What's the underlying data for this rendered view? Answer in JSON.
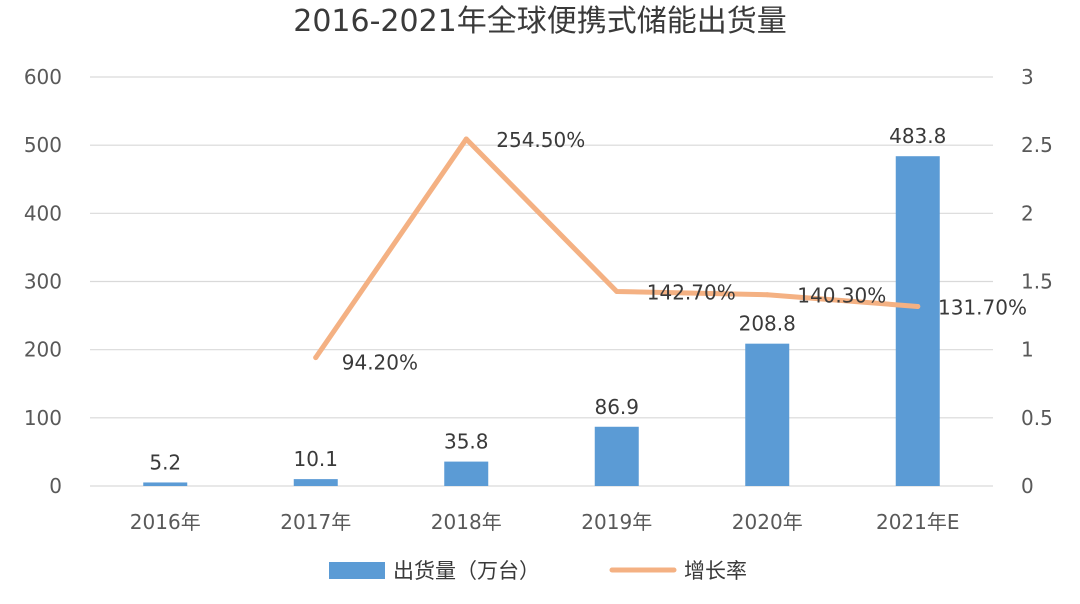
{
  "chart_data": {
    "type": "bar",
    "title": "2016-2021年全球便携式储能出货量",
    "categories": [
      "2016年",
      "2017年",
      "2018年",
      "2019年",
      "2020年",
      "2021年E"
    ],
    "series": [
      {
        "name": "出货量（万台）",
        "type": "bar",
        "axis": "left",
        "values": [
          5.2,
          10.1,
          35.8,
          86.9,
          208.8,
          483.8
        ],
        "labels": [
          "5.2",
          "10.1",
          "35.8",
          "86.9",
          "208.8",
          "483.8"
        ],
        "color": "#5b9bd5"
      },
      {
        "name": "增长率",
        "type": "line",
        "axis": "right",
        "values": [
          null,
          0.942,
          2.545,
          1.427,
          1.403,
          1.317
        ],
        "labels": [
          "",
          "94.20%",
          "254.50%",
          "142.70%",
          "140.30%",
          "131.70%"
        ],
        "color": "#f4b183"
      }
    ],
    "y_left": {
      "min": 0,
      "max": 600,
      "ticks": [
        "0",
        "100",
        "200",
        "300",
        "400",
        "500",
        "600"
      ]
    },
    "y_right": {
      "min": 0,
      "max": 3,
      "ticks": [
        "0",
        "0.5",
        "1",
        "1.5",
        "2",
        "2.5",
        "3"
      ]
    },
    "grid": true,
    "legend_position": "bottom"
  }
}
